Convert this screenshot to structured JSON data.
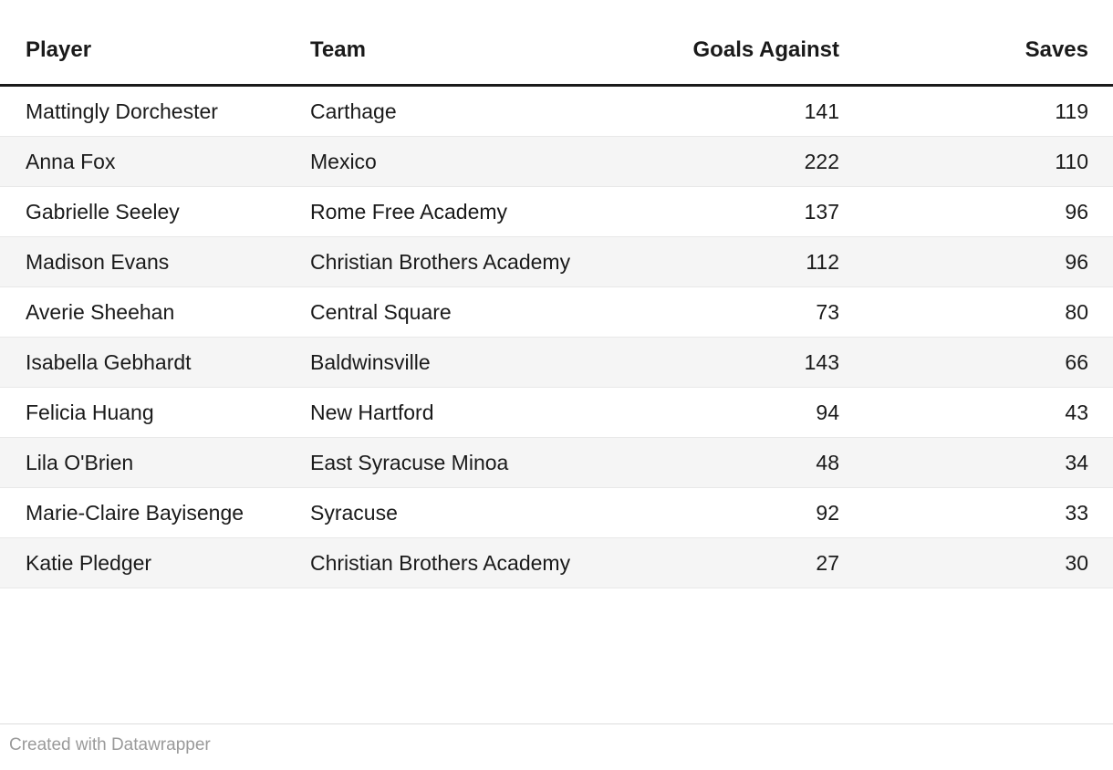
{
  "chart_data": {
    "type": "table",
    "columns": [
      "Player",
      "Team",
      "Goals Against",
      "Saves"
    ],
    "rows": [
      {
        "player": "Mattingly Dorchester",
        "team": "Carthage",
        "goals_against": 141,
        "saves": 119
      },
      {
        "player": "Anna Fox",
        "team": "Mexico",
        "goals_against": 222,
        "saves": 110
      },
      {
        "player": "Gabrielle Seeley",
        "team": "Rome Free Academy",
        "goals_against": 137,
        "saves": 96
      },
      {
        "player": "Madison Evans",
        "team": "Christian Brothers Academy",
        "goals_against": 112,
        "saves": 96
      },
      {
        "player": "Averie Sheehan",
        "team": "Central Square",
        "goals_against": 73,
        "saves": 80
      },
      {
        "player": "Isabella Gebhardt",
        "team": "Baldwinsville",
        "goals_against": 143,
        "saves": 66
      },
      {
        "player": "Felicia Huang",
        "team": "New Hartford",
        "goals_against": 94,
        "saves": 43
      },
      {
        "player": "Lila O'Brien",
        "team": "East Syracuse Minoa",
        "goals_against": 48,
        "saves": 34
      },
      {
        "player": "Marie-Claire Bayisenge",
        "team": "Syracuse",
        "goals_against": 92,
        "saves": 33
      },
      {
        "player": "Katie Pledger",
        "team": "Christian Brothers Academy",
        "goals_against": 27,
        "saves": 30
      }
    ]
  },
  "footer": {
    "text": "Created with Datawrapper"
  },
  "colors": {
    "text": "#1a1a1a",
    "header_border": "#1a1a1a",
    "stripe": "#f5f5f5",
    "row_border": "#e8e8e8",
    "footer_text": "#9a9a9a"
  }
}
